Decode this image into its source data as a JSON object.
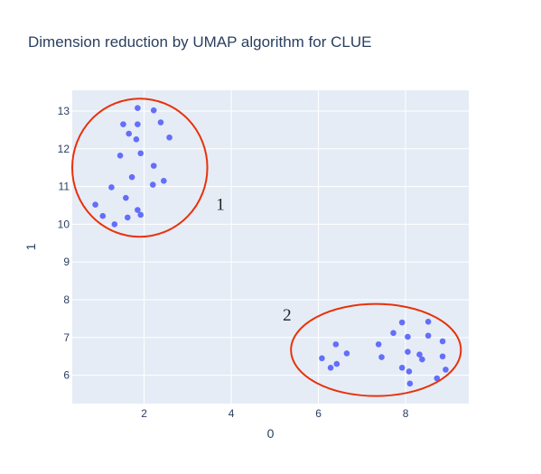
{
  "chart_data": {
    "type": "scatter",
    "title": "Dimension reduction by UMAP algorithm for CLUE",
    "xlabel": "0",
    "ylabel": "1",
    "xlim": [
      0.35,
      9.45
    ],
    "ylim": [
      5.25,
      13.55
    ],
    "xticks": [
      2,
      4,
      6,
      8
    ],
    "yticks": [
      6,
      7,
      8,
      9,
      10,
      11,
      12,
      13
    ],
    "grid": true,
    "legend": "none",
    "marker_color": "#636efa",
    "annotation_color": "#e8320a",
    "points": [
      {
        "x": 1.85,
        "y": 13.08
      },
      {
        "x": 2.22,
        "y": 13.02
      },
      {
        "x": 1.52,
        "y": 12.65
      },
      {
        "x": 1.85,
        "y": 12.65
      },
      {
        "x": 2.38,
        "y": 12.7
      },
      {
        "x": 1.65,
        "y": 12.4
      },
      {
        "x": 1.82,
        "y": 12.25
      },
      {
        "x": 2.58,
        "y": 12.3
      },
      {
        "x": 1.45,
        "y": 11.82
      },
      {
        "x": 1.92,
        "y": 11.88
      },
      {
        "x": 2.22,
        "y": 11.55
      },
      {
        "x": 1.72,
        "y": 11.25
      },
      {
        "x": 2.45,
        "y": 11.15
      },
      {
        "x": 2.2,
        "y": 11.05
      },
      {
        "x": 1.25,
        "y": 10.98
      },
      {
        "x": 1.58,
        "y": 10.7
      },
      {
        "x": 0.88,
        "y": 10.52
      },
      {
        "x": 1.85,
        "y": 10.38
      },
      {
        "x": 1.05,
        "y": 10.22
      },
      {
        "x": 1.62,
        "y": 10.18
      },
      {
        "x": 1.92,
        "y": 10.25
      },
      {
        "x": 1.32,
        "y": 10.0
      },
      {
        "x": 7.92,
        "y": 7.4
      },
      {
        "x": 8.52,
        "y": 7.42
      },
      {
        "x": 7.72,
        "y": 7.12
      },
      {
        "x": 8.05,
        "y": 7.02
      },
      {
        "x": 8.52,
        "y": 7.05
      },
      {
        "x": 7.38,
        "y": 6.82
      },
      {
        "x": 8.85,
        "y": 6.9
      },
      {
        "x": 6.4,
        "y": 6.82
      },
      {
        "x": 8.05,
        "y": 6.62
      },
      {
        "x": 6.65,
        "y": 6.58
      },
      {
        "x": 8.32,
        "y": 6.55
      },
      {
        "x": 6.08,
        "y": 6.45
      },
      {
        "x": 7.45,
        "y": 6.48
      },
      {
        "x": 8.38,
        "y": 6.42
      },
      {
        "x": 8.85,
        "y": 6.5
      },
      {
        "x": 6.42,
        "y": 6.3
      },
      {
        "x": 6.28,
        "y": 6.2
      },
      {
        "x": 7.92,
        "y": 6.2
      },
      {
        "x": 8.92,
        "y": 6.15
      },
      {
        "x": 8.08,
        "y": 6.1
      },
      {
        "x": 8.72,
        "y": 5.92
      },
      {
        "x": 8.1,
        "y": 5.78
      }
    ],
    "ellipses": [
      {
        "cx": 1.9,
        "cy": 11.5,
        "rx": 1.55,
        "ry": 1.83
      },
      {
        "cx": 7.32,
        "cy": 6.67,
        "rx": 1.95,
        "ry": 1.22
      }
    ],
    "annotations": [
      {
        "text": "1",
        "x": 3.75,
        "y": 10.52
      },
      {
        "text": "2",
        "x": 5.28,
        "y": 7.6
      }
    ]
  }
}
